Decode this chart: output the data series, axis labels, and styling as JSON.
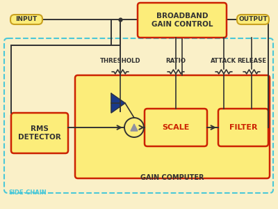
{
  "bg_color": "#FAF0C8",
  "yellow_fill": "#FCED7A",
  "border_color": "#C8A020",
  "red_color": "#CC2200",
  "blue_color": "#1A3A8A",
  "dark_line": "#333333",
  "cyan_dashed": "#4AC8D8",
  "text_dark": "#333333",
  "text_red": "#CC2200",
  "text_cyan": "#4AC8D8",
  "label_input": "INPUT",
  "label_output": "OUTPUT",
  "label_broadband": "BROADBAND\nGAIN CONTROL",
  "label_rms": "RMS\nDETECTOR",
  "label_scale": "SCALE",
  "label_filter": "FILTER",
  "label_gain_computer": "GAIN COMPUTER",
  "label_side_chain": "SIDE-CHAIN",
  "label_threshold": "THRESHOLD",
  "label_ratio": "RATIO",
  "label_attack": "ATTACK",
  "label_release": "RELEASE"
}
